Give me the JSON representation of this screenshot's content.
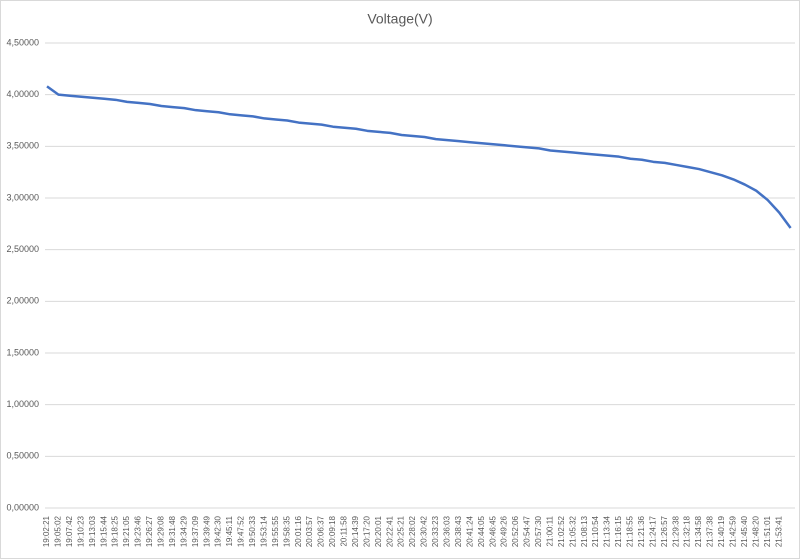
{
  "chart_data": {
    "type": "line",
    "title": "Voltage(V)",
    "categories": [
      "19:02:21",
      "19:05:02",
      "19:07:42",
      "19:10:23",
      "19:13:03",
      "19:15:44",
      "19:18:25",
      "19:21:05",
      "19:23:46",
      "19:26:27",
      "19:29:08",
      "19:31:48",
      "19:34:29",
      "19:37:09",
      "19:39:49",
      "19:42:30",
      "19:45:11",
      "19:47:52",
      "19:50:33",
      "19:53:14",
      "19:55:55",
      "19:58:35",
      "20:01:16",
      "20:03:57",
      "20:06:37",
      "20:09:18",
      "20:11:58",
      "20:14:39",
      "20:17:20",
      "20:20:01",
      "20:22:41",
      "20:25:21",
      "20:28:02",
      "20:30:42",
      "20:33:23",
      "20:36:03",
      "20:38:43",
      "20:41:24",
      "20:44:05",
      "20:46:45",
      "20:49:26",
      "20:52:06",
      "20:54:47",
      "20:57:30",
      "21:00:11",
      "21:02:52",
      "21:05:32",
      "21:08:13",
      "21:10:54",
      "21:13:34",
      "21:16:15",
      "21:18:55",
      "21:21:36",
      "21:24:17",
      "21:26:57",
      "21:29:38",
      "21:32:18",
      "21:34:58",
      "21:37:38",
      "21:40:19",
      "21:42:59",
      "21:45:40",
      "21:48:20",
      "21:51:01",
      "21:53:41",
      null
    ],
    "values": [
      4.08,
      4.0,
      3.99,
      3.98,
      3.97,
      3.96,
      3.95,
      3.93,
      3.92,
      3.91,
      3.89,
      3.88,
      3.87,
      3.85,
      3.84,
      3.83,
      3.81,
      3.8,
      3.79,
      3.77,
      3.76,
      3.75,
      3.73,
      3.72,
      3.71,
      3.69,
      3.68,
      3.67,
      3.65,
      3.64,
      3.63,
      3.61,
      3.6,
      3.59,
      3.57,
      3.56,
      3.55,
      3.54,
      3.53,
      3.52,
      3.51,
      3.5,
      3.49,
      3.48,
      3.46,
      3.45,
      3.44,
      3.43,
      3.42,
      3.41,
      3.4,
      3.38,
      3.37,
      3.35,
      3.34,
      3.32,
      3.3,
      3.28,
      3.25,
      3.22,
      3.18,
      3.13,
      3.07,
      2.98,
      2.86,
      2.71
    ],
    "color": "#4472c4",
    "ylim": [
      0,
      4.5
    ],
    "yticks": [
      {
        "value": 0,
        "label": "0,00000"
      },
      {
        "value": 0.5,
        "label": "0,50000"
      },
      {
        "value": 1,
        "label": "1,00000"
      },
      {
        "value": 1.5,
        "label": "1,50000"
      },
      {
        "value": 2,
        "label": "2,00000"
      },
      {
        "value": 2.5,
        "label": "2,50000"
      },
      {
        "value": 3,
        "label": "3,00000"
      },
      {
        "value": 3.5,
        "label": "3,50000"
      },
      {
        "value": 4,
        "label": "4,00000"
      },
      {
        "value": 4.5,
        "label": "4,50000"
      }
    ],
    "grid": true
  }
}
